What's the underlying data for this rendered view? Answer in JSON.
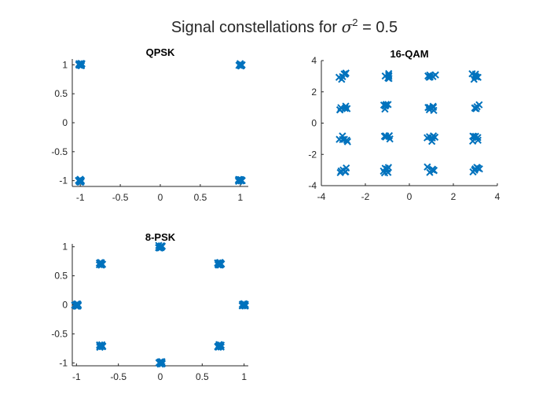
{
  "figure": {
    "title_prefix": "Signal constellations for ",
    "title_symbol": "σ",
    "title_exponent": "2",
    "title_suffix": " = 0.5",
    "marker_color": "#0072BD",
    "marker_symbol": "x"
  },
  "chart_data": [
    {
      "type": "scatter",
      "title": "QPSK",
      "xlabel": "",
      "ylabel": "",
      "xlim": [
        -1.1,
        1.1
      ],
      "ylim": [
        -1.1,
        1.1
      ],
      "xticks": [
        -1,
        -0.5,
        0,
        0.5,
        1
      ],
      "xtick_labels": [
        "-1",
        "-0.5",
        "0",
        "0.5",
        "1"
      ],
      "yticks": [
        -1,
        -0.5,
        0,
        0.5,
        1
      ],
      "ytick_labels": [
        "-1",
        "-0.5",
        "0",
        "0.5",
        "1"
      ],
      "grid": false,
      "box": false,
      "points": [
        [
          -1,
          1
        ],
        [
          1,
          1
        ],
        [
          -1,
          -1
        ],
        [
          1,
          -1
        ]
      ]
    },
    {
      "type": "scatter",
      "title": "16-QAM",
      "xlabel": "",
      "ylabel": "",
      "xlim": [
        -4,
        4
      ],
      "ylim": [
        -4,
        4
      ],
      "xticks": [
        -4,
        -2,
        0,
        2,
        4
      ],
      "xtick_labels": [
        "-4",
        "-2",
        "0",
        "2",
        "4"
      ],
      "yticks": [
        -4,
        -2,
        0,
        2,
        4
      ],
      "ytick_labels": [
        "-4",
        "-2",
        "0",
        "2",
        "4"
      ],
      "grid": false,
      "box": false,
      "points": [
        [
          -3,
          3
        ],
        [
          -1,
          3
        ],
        [
          1,
          3
        ],
        [
          3,
          3
        ],
        [
          -3,
          1
        ],
        [
          -1,
          1
        ],
        [
          1,
          1
        ],
        [
          3,
          1
        ],
        [
          -3,
          -1
        ],
        [
          -1,
          -1
        ],
        [
          1,
          -1
        ],
        [
          3,
          -1
        ],
        [
          -3,
          -3
        ],
        [
          -1,
          -3
        ],
        [
          1,
          -3
        ],
        [
          3,
          -3
        ]
      ]
    },
    {
      "type": "scatter",
      "title": "8-PSK",
      "xlabel": "",
      "ylabel": "",
      "xlim": [
        -1.05,
        1.05
      ],
      "ylim": [
        -1.05,
        1.05
      ],
      "xticks": [
        -1,
        -0.5,
        0,
        0.5,
        1
      ],
      "xtick_labels": [
        "-1",
        "-0.5",
        "0",
        "0.5",
        "1"
      ],
      "yticks": [
        -1,
        -0.5,
        0,
        0.5,
        1
      ],
      "ytick_labels": [
        "-1",
        "-0.5",
        "0",
        "0.5",
        "1"
      ],
      "grid": false,
      "box": false,
      "points": [
        [
          0,
          1
        ],
        [
          0.707,
          0.707
        ],
        [
          1,
          0
        ],
        [
          0.707,
          -0.707
        ],
        [
          0,
          -1
        ],
        [
          -0.707,
          -0.707
        ],
        [
          -1,
          0
        ],
        [
          -0.707,
          0.707
        ]
      ]
    }
  ]
}
